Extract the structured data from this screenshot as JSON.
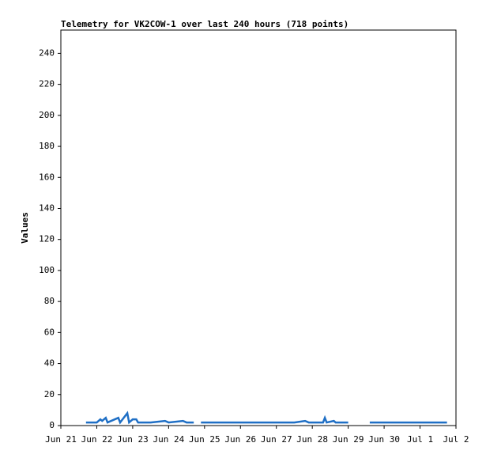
{
  "chart_data": {
    "type": "line",
    "title": "Telemetry for VK2COW-1 over last 240 hours (718 points)",
    "y_label": "Values",
    "x": [
      0.7,
      1.0,
      1.1,
      1.15,
      1.25,
      1.3,
      1.6,
      1.65,
      1.85,
      1.9,
      2.0,
      2.1,
      2.15,
      2.5,
      2.9,
      3.0,
      3.4,
      3.5,
      3.7,
      3.8,
      3.9,
      4.5,
      5.0,
      5.5,
      6.0,
      6.5,
      6.8,
      6.9,
      7.3,
      7.35,
      7.4,
      7.6,
      7.65,
      8.0,
      8.3,
      8.6,
      9.0,
      9.5,
      10.0,
      10.3,
      10.75
    ],
    "series": [
      {
        "name": "Values",
        "color": "#1f6fc5",
        "values": [
          2,
          2,
          4,
          3,
          5,
          2,
          5,
          2,
          8,
          2,
          4,
          4,
          2,
          2,
          3,
          2,
          3,
          2,
          2,
          null,
          2,
          2,
          2,
          2,
          2,
          2,
          3,
          2,
          2,
          5,
          2,
          3,
          2,
          2,
          null,
          2,
          2,
          2,
          2,
          2,
          2
        ]
      }
    ],
    "xlim": [
      0,
      11
    ],
    "xticks": [
      {
        "value": 0,
        "label": "Jun 21"
      },
      {
        "value": 1,
        "label": "Jun 22"
      },
      {
        "value": 2,
        "label": "Jun 23"
      },
      {
        "value": 3,
        "label": "Jun 24"
      },
      {
        "value": 4,
        "label": "Jun 25"
      },
      {
        "value": 5,
        "label": "Jun 26"
      },
      {
        "value": 6,
        "label": "Jun 27"
      },
      {
        "value": 7,
        "label": "Jun 28"
      },
      {
        "value": 8,
        "label": "Jun 29"
      },
      {
        "value": 9,
        "label": "Jun 30"
      },
      {
        "value": 10,
        "label": "Jul 1"
      },
      {
        "value": 11,
        "label": "Jul 2"
      }
    ],
    "ylim": [
      0,
      255
    ],
    "yticks": [
      0,
      20,
      40,
      60,
      80,
      100,
      120,
      140,
      160,
      180,
      200,
      220,
      240
    ]
  }
}
